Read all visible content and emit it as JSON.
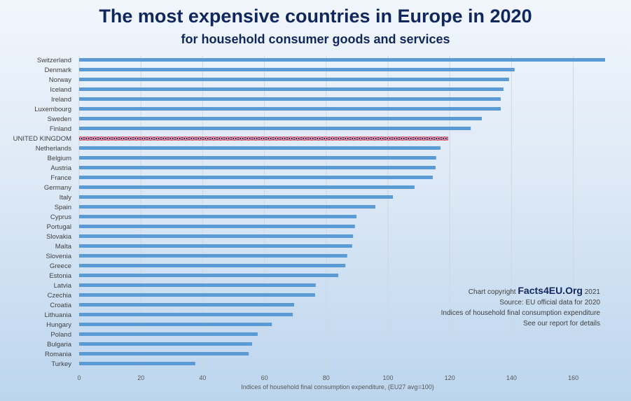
{
  "chart_data": {
    "type": "bar",
    "orientation": "horizontal",
    "title": "The most expensive countries in Europe in 2020",
    "subtitle": "for household consumer goods and services",
    "xlabel": "Indices of  household final consumption expenditure, (EU27 avg=100)",
    "xlim": [
      0,
      170
    ],
    "xticks": [
      "0",
      "20",
      "40",
      "60",
      "80",
      "100",
      "120",
      "140",
      "160"
    ],
    "grid": true,
    "bar_color": "#5b9bd5",
    "highlight": {
      "category": "UNITED KINGDOM",
      "pattern": "union-flag",
      "colors": [
        "#c8102e",
        "#012169",
        "#ffffff"
      ]
    },
    "categories": [
      "Switzerland",
      "Denmark",
      "Norway",
      "Iceland",
      "Ireland",
      "Luxembourg",
      "Sweden",
      "Finland",
      "UNITED KINGDOM",
      "Netherlands",
      "Belgium",
      "Austria",
      "France",
      "Germany",
      "Italy",
      "Spain",
      "Cyprus",
      "Portugal",
      "Slovakia",
      "Malta",
      "Slovenia",
      "Greece",
      "Estonia",
      "Latvia",
      "Czechia",
      "Croatia",
      "Lithuania",
      "Hungary",
      "Poland",
      "Bulgaria",
      "Romania",
      "Turkey"
    ],
    "values": [
      170.3,
      141.0,
      139.2,
      137.4,
      136.5,
      136.5,
      130.4,
      126.8,
      119.5,
      117.0,
      115.6,
      115.4,
      114.5,
      108.6,
      101.6,
      95.9,
      89.8,
      89.3,
      88.7,
      88.4,
      86.8,
      86.2,
      83.9,
      76.6,
      76.4,
      69.6,
      69.2,
      62.4,
      57.8,
      56.0,
      54.9,
      37.6
    ]
  },
  "notes": {
    "copyright_prefix": "Chart copyright",
    "brand": "Facts4EU.Org",
    "year": "2021",
    "source": "Source: EU official data for 2020",
    "indices": "Indices of household final consumption expenditure",
    "report": "See our report for details"
  }
}
